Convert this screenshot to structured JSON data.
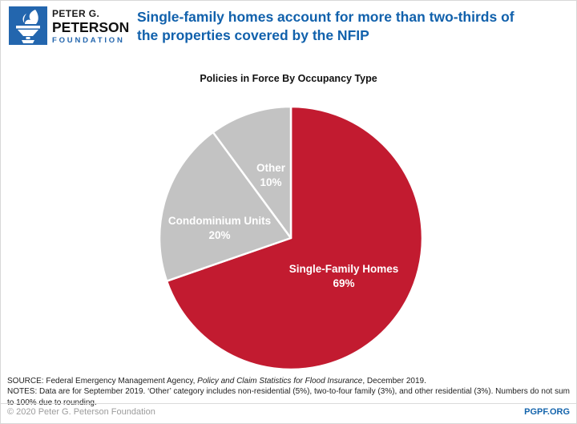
{
  "header": {
    "logo": {
      "line1": "PETER G.",
      "line2": "PETERSON",
      "line3": "FOUNDATION",
      "square_color": "#2366ae"
    },
    "title_line1": "Single-family homes account for more than two-thirds of",
    "title_line2": "the properties covered by the NFIP"
  },
  "chart_data": {
    "type": "pie",
    "title": "Policies in Force By Occupancy Type",
    "start_angle": "top",
    "direction": "clockwise",
    "separator_color": "#ffffff",
    "slices": [
      {
        "label": "Single-Family Homes",
        "value": 69,
        "pct_label": "69%",
        "color": "#c21b30",
        "text_color": "#ffffff"
      },
      {
        "label": "Condominium Units",
        "value": 20,
        "pct_label": "20%",
        "color": "#c3c3c3",
        "text_color": "#ffffff"
      },
      {
        "label": "Other",
        "value": 10,
        "pct_label": "10%",
        "color": "#c3c3c3",
        "text_color": "#ffffff"
      }
    ]
  },
  "notes": {
    "source_prefix": "SOURCE: Federal Emergency Management Agency, ",
    "source_italic": "Policy and Claim Statistics for Flood Insurance",
    "source_suffix": ", December 2019.",
    "notes_text": "NOTES: Data are for September 2019. ‘Other’ category includes non-residential (5%), two-to-four family (3%), and other residential (3%). Numbers do not sum to 100% due to rounding."
  },
  "footer": {
    "copyright": "© 2020 Peter G. Peterson Foundation",
    "site": "PGPF.ORG"
  },
  "colors": {
    "accent_blue": "#1161ac",
    "chart_red": "#c21b30",
    "chart_gray": "#c3c3c3"
  }
}
